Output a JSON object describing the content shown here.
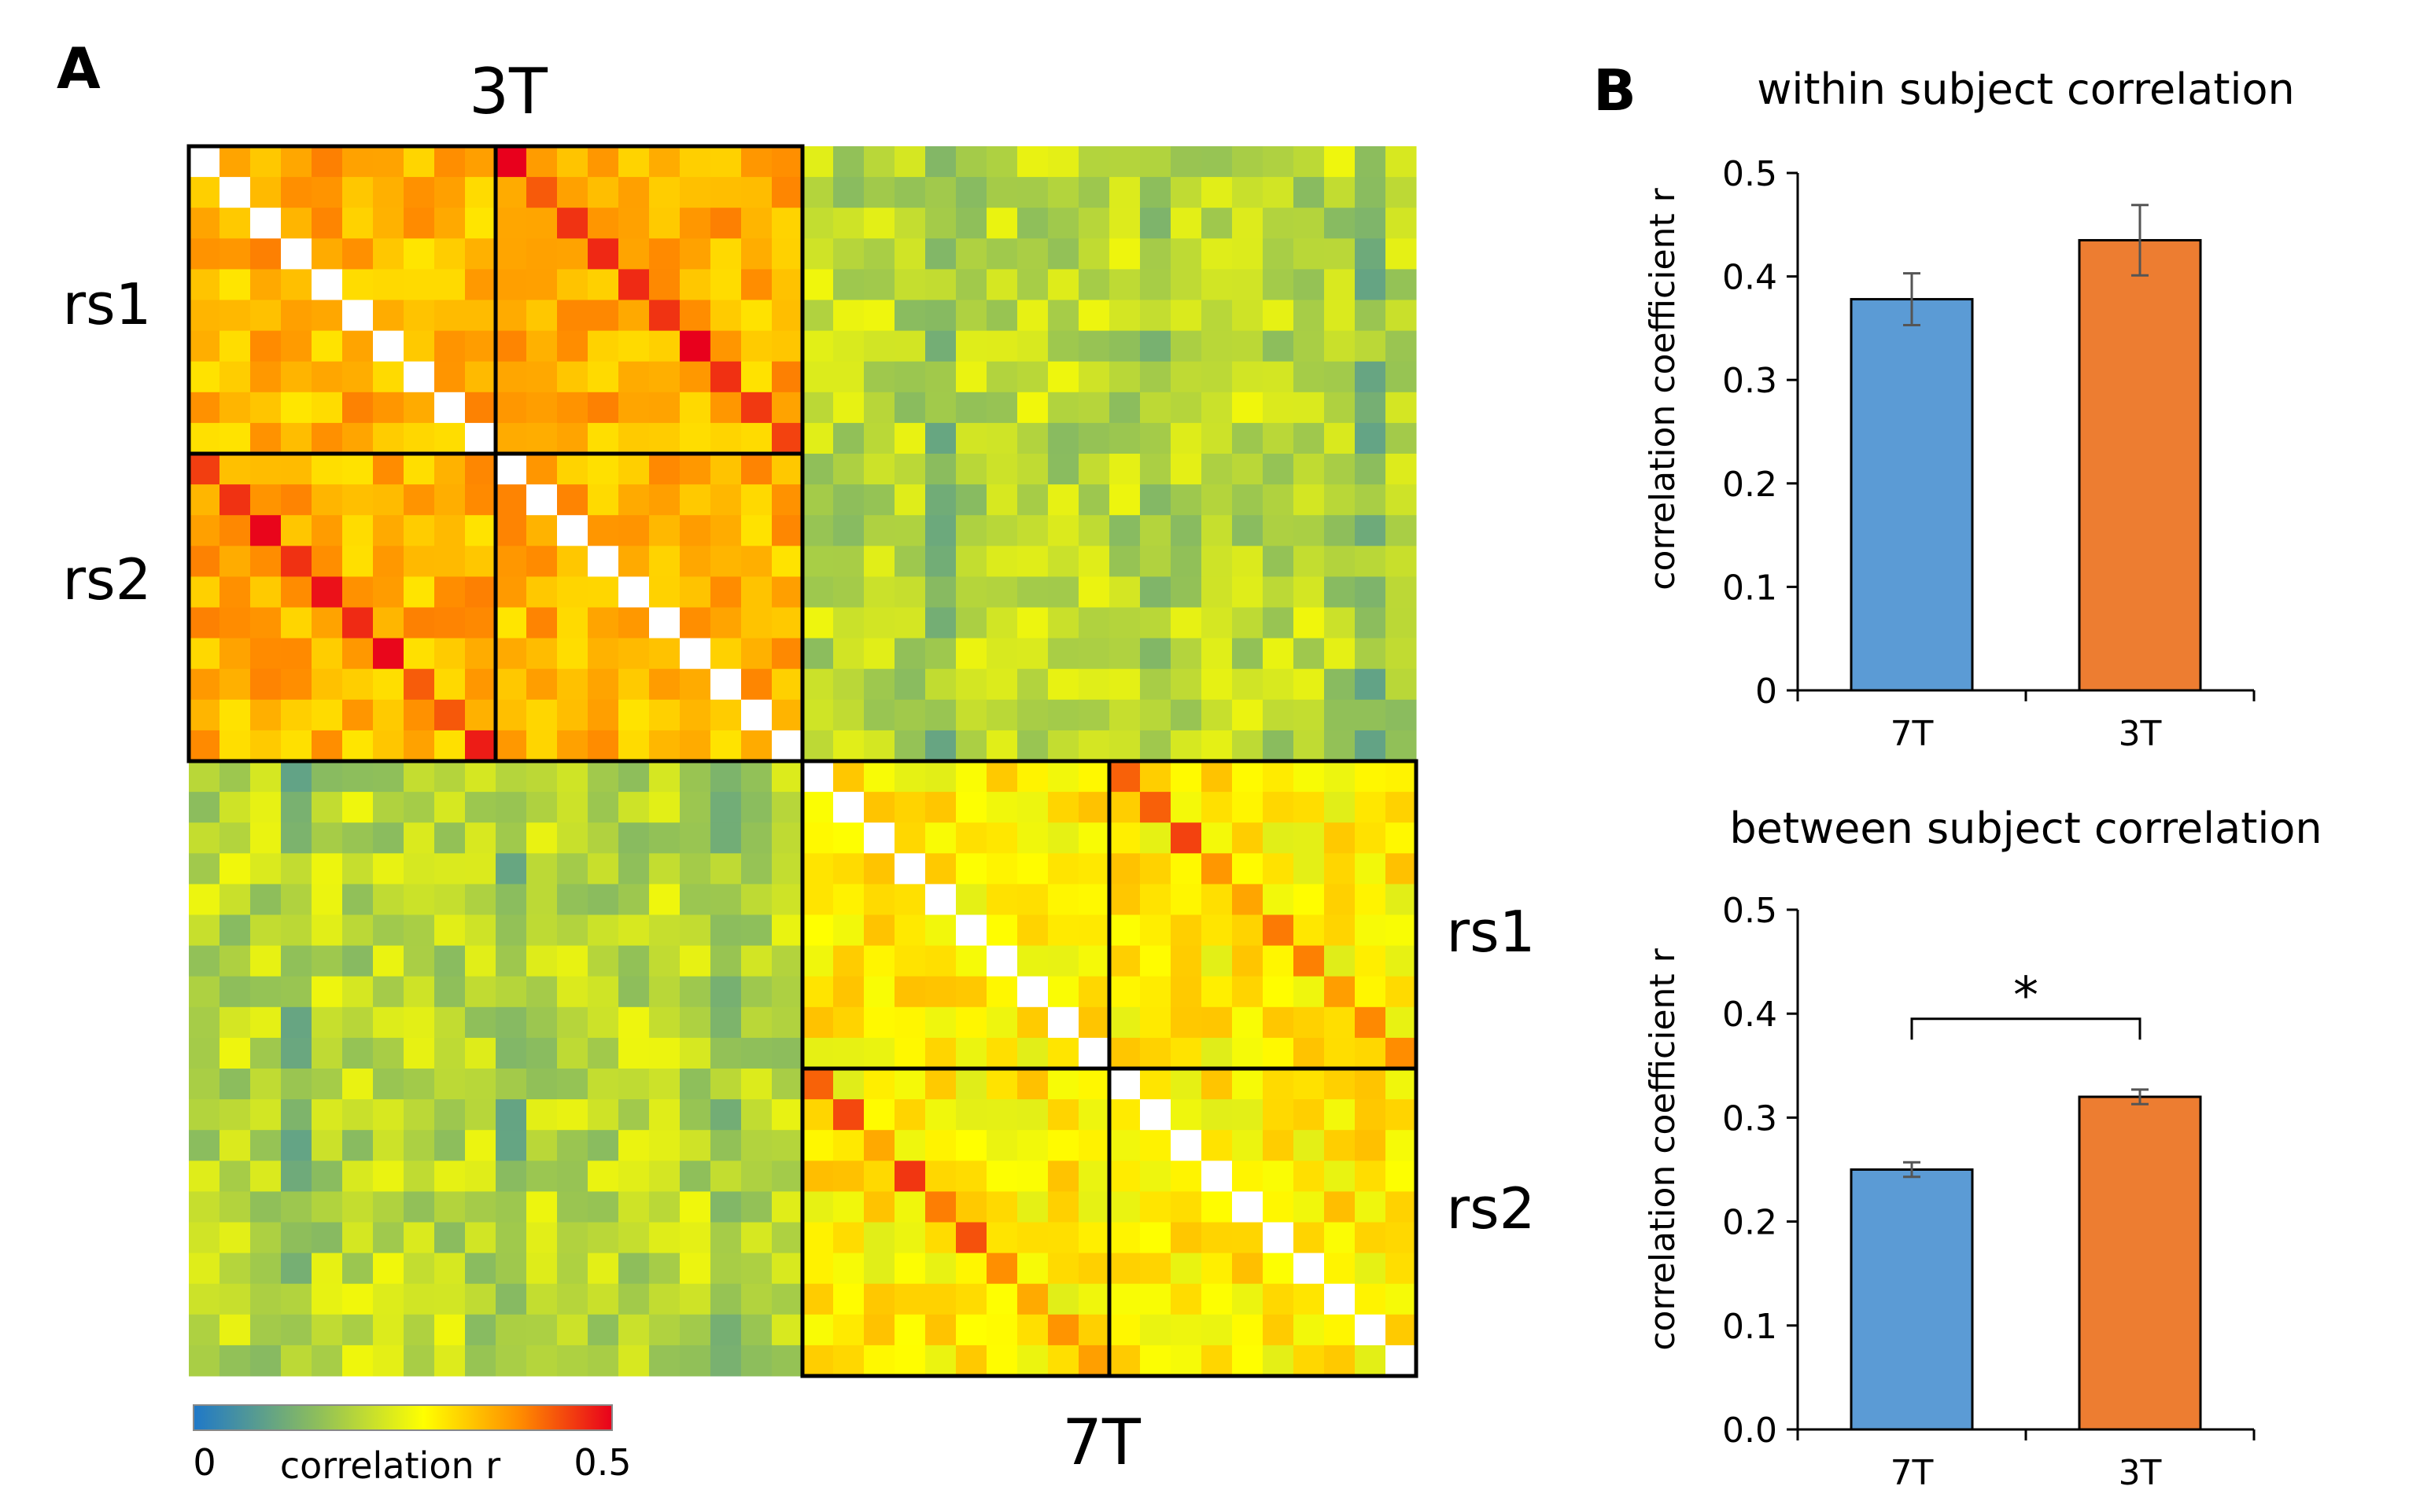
{
  "panel_a": {
    "letter": "A",
    "top_label": "3T",
    "bottom_label": "7T",
    "left_row_labels": [
      "rs1",
      "rs2"
    ],
    "right_row_labels": [
      "rs1",
      "rs2"
    ],
    "colorbar": {
      "min_label": "0",
      "max_label": "0.5",
      "title": "correlation r",
      "colors": [
        "#1f78c8",
        "#8fbf5a",
        "#ffff00",
        "#ff8c00",
        "#e8001c"
      ]
    },
    "block_size": 10,
    "heatmap_values": "seeded"
  },
  "panel_b": {
    "letter": "B",
    "bar_colors": {
      "7T": "#5b9bd5",
      "3T": "#ed7d31"
    },
    "bar_border_color": "#000000"
  },
  "chart_data": [
    {
      "type": "heatmap",
      "title": "",
      "rows": 40,
      "cols": 40,
      "groups": [
        "3T rs1",
        "3T rs2",
        "7T rs1",
        "7T rs2"
      ],
      "value_range": [
        0,
        0.5
      ],
      "colorbar_label": "correlation r",
      "note": "subject-by-subject correlation matrix; 40 subjects (4 blocks of 10), diagonal cells white"
    },
    {
      "type": "bar",
      "title": "within subject correlation",
      "categories": [
        "7T",
        "3T"
      ],
      "values": [
        0.378,
        0.435
      ],
      "errors": [
        0.025,
        0.034
      ],
      "ylabel": "correlation coefficient r",
      "ylim": [
        0,
        0.5
      ],
      "yticks": [
        "0",
        "0.1",
        "0.2",
        "0.3",
        "0.4",
        "0.5"
      ],
      "significance": ""
    },
    {
      "type": "bar",
      "title": "between subject correlation",
      "categories": [
        "7T",
        "3T"
      ],
      "values": [
        0.25,
        0.32
      ],
      "errors": [
        0.007,
        0.007
      ],
      "ylabel": "correlation coefficient r",
      "ylim": [
        0,
        0.5
      ],
      "yticks": [
        "0.0",
        "0.1",
        "0.2",
        "0.3",
        "0.4",
        "0.5"
      ],
      "significance": "*"
    }
  ]
}
